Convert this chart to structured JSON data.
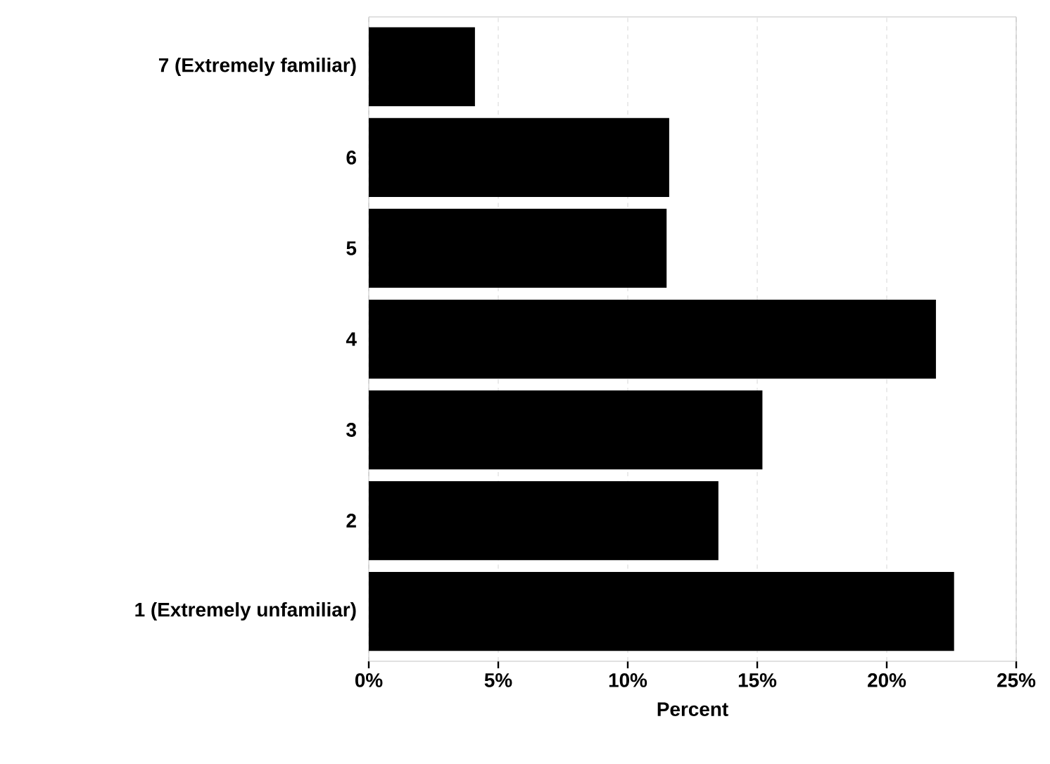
{
  "chart_data": {
    "type": "bar",
    "orientation": "horizontal",
    "xlabel": "Percent",
    "categories": [
      "7 (Extremely familiar)",
      "6",
      "5",
      "4",
      "3",
      "2",
      "1 (Extremely unfamiliar)"
    ],
    "values": [
      4.1,
      11.6,
      11.5,
      21.9,
      15.2,
      13.5,
      22.6
    ],
    "color": "#000000",
    "xlim": [
      0,
      25
    ],
    "xticks": [
      {
        "value": 0,
        "label": "0%"
      },
      {
        "value": 5,
        "label": "5%"
      },
      {
        "value": 10,
        "label": "10%"
      },
      {
        "value": 15,
        "label": "15%"
      },
      {
        "value": 20,
        "label": "20%"
      },
      {
        "value": 25,
        "label": "25%"
      }
    ],
    "grid": "x"
  }
}
